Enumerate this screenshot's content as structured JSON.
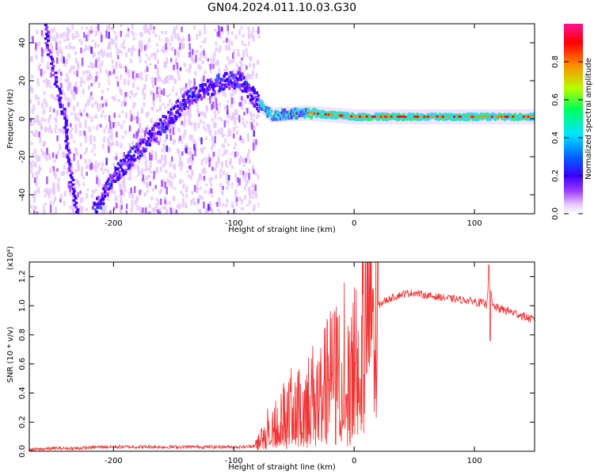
{
  "figure": {
    "title": "GN04.2024.011.10.03.G30"
  },
  "chart_data": [
    {
      "type": "heatmap",
      "title": "GN04.2024.011.10.03.G30",
      "xlabel": "Height of straight line (km)",
      "ylabel": "Frequency (Hz)",
      "xlim": [
        -270,
        150
      ],
      "ylim": [
        -50,
        50
      ],
      "xticks": [
        -200,
        -100,
        0,
        100
      ],
      "yticks": [
        -40,
        -20,
        0,
        20,
        40
      ],
      "colorbar": {
        "label": "Normalized spectral amplitude",
        "range": [
          0.0,
          1.0
        ],
        "ticks": [
          0.0,
          0.2,
          0.4,
          0.6,
          0.8
        ],
        "colormap": [
          "#ffffff",
          "#e6c8ff",
          "#9b3cff",
          "#3a00ff",
          "#0064ff",
          "#00e6ff",
          "#00ff5a",
          "#b4ff00",
          "#ff8c00",
          "#ff0000",
          "#ff1493"
        ]
      },
      "features": [
        {
          "name": "",
          "description_points": [
            [
              -255,
              40
            ],
            [
              -240,
              0
            ],
            [
              -235,
              -30
            ],
            [
              -230,
              -50
            ]
          ]
        },
        {
          "name": "",
          "description_points": [
            [
              -218,
              -50
            ],
            [
              -200,
              -30
            ],
            [
              -170,
              -10
            ],
            [
              -140,
              10
            ],
            [
              -110,
              20
            ],
            [
              -95,
              20
            ],
            [
              -80,
              8
            ],
            [
              -70,
              2
            ],
            [
              -40,
              3
            ],
            [
              -20,
              2
            ],
            [
              0,
              1
            ],
            [
              50,
              1
            ],
            [
              100,
              1
            ],
            [
              150,
              1
            ]
          ]
        }
      ]
    },
    {
      "type": "line",
      "xlabel": "Height of straight line (km)",
      "ylabel": "SNR (10 * v/v)",
      "multiplier": "(x10⁴)",
      "xlim": [
        -270,
        150
      ],
      "ylim": [
        0.0,
        1.3
      ],
      "xticks": [
        -200,
        -100,
        0,
        100
      ],
      "yticks": [
        0.0,
        0.2,
        0.4,
        0.6,
        0.8,
        1.0,
        1.2
      ],
      "color": "#f03232",
      "series": [
        {
          "x": [
            -270,
            -250,
            -230,
            -210,
            -190,
            -170,
            -150,
            -130,
            -110,
            -90,
            -82,
            -75,
            -70,
            -65,
            -60,
            -55,
            -50,
            -45,
            -40,
            -35,
            -30,
            -25,
            -20,
            -15,
            -10,
            -5,
            0,
            5,
            10,
            15,
            20,
            25,
            30,
            40,
            50,
            60,
            70,
            80,
            90,
            100,
            105,
            110,
            112,
            115,
            120,
            130,
            140,
            150
          ],
          "y": [
            0.01,
            0.02,
            0.02,
            0.03,
            0.03,
            0.03,
            0.03,
            0.03,
            0.03,
            0.03,
            0.04,
            0.12,
            0.18,
            0.22,
            0.25,
            0.28,
            0.32,
            0.3,
            0.35,
            0.4,
            0.38,
            0.45,
            0.52,
            0.55,
            0.6,
            0.68,
            0.75,
            0.82,
            0.9,
            0.95,
            1.0,
            1.03,
            1.05,
            1.08,
            1.09,
            1.07,
            1.06,
            1.05,
            1.04,
            1.03,
            1.02,
            1.01,
            1.2,
            1.0,
            0.98,
            0.96,
            0.93,
            0.9
          ]
        }
      ]
    }
  ]
}
